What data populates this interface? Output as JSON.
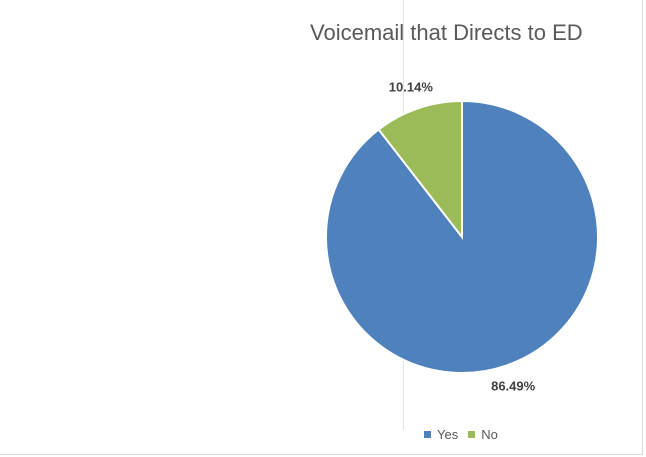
{
  "chart_data": {
    "type": "pie",
    "title": "Voicemail that Directs to ED",
    "categories": [
      "Yes",
      "No"
    ],
    "values": [
      86.49,
      10.14
    ],
    "data_labels": [
      "86.49%",
      "10.14%"
    ],
    "colors": [
      "#4F81BD",
      "#9BBB59"
    ],
    "legend": {
      "position": "bottom",
      "entries": [
        "Yes",
        "No"
      ]
    }
  }
}
